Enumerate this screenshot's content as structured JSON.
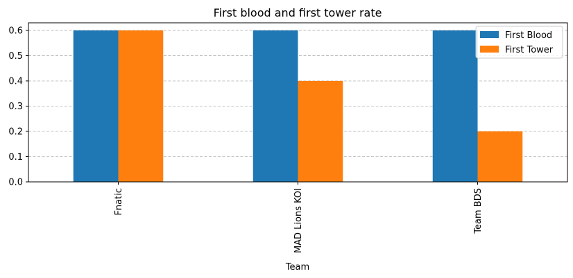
{
  "chart_data": {
    "type": "bar",
    "title": "First blood and first tower rate",
    "xlabel": "Team",
    "ylabel": "",
    "categories": [
      "Fnatic",
      "MAD Lions KOI",
      "Team BDS"
    ],
    "series": [
      {
        "name": "First Blood",
        "values": [
          0.6,
          0.6,
          0.6
        ],
        "color": "#1f77b4"
      },
      {
        "name": "First Tower",
        "values": [
          0.6,
          0.4,
          0.2
        ],
        "color": "#ff7f0e"
      }
    ],
    "ylim": [
      0,
      0.63
    ],
    "yticks": [
      "0.0",
      "0.1",
      "0.2",
      "0.3",
      "0.4",
      "0.5",
      "0.6"
    ],
    "grid": "y-dashed",
    "legend_position": "top-right"
  }
}
